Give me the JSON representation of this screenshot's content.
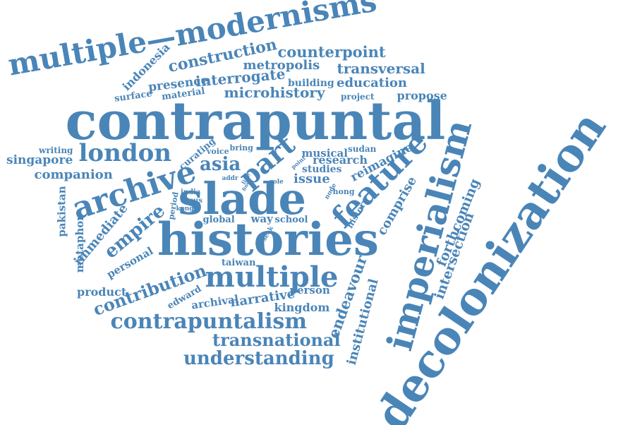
{
  "colors": {
    "text": "#4a85b8",
    "background": "#ffffff"
  },
  "words": {
    "multiple_modernisms": "multiple—modernisms",
    "construction": "construction",
    "indonesia": "indonesia",
    "counterpoint": "counterpoint",
    "metropolis": "metropolis",
    "transversal": "transversal",
    "presence": "presence",
    "interrogate": "interrogate",
    "building": "building",
    "education": "education",
    "surface": "surface",
    "material": "material",
    "microhistory": "microhistory",
    "project": "project",
    "propose": "propose",
    "contrapuntal": "contrapuntal",
    "writing": "writing",
    "singapore": "singapore",
    "london": "london",
    "curating": "curating",
    "voice": "voice",
    "bring": "bring",
    "musical": "musical",
    "sudan": "sudan",
    "research": "research",
    "reimagine": "reimagine",
    "companion": "companion",
    "asia": "asia",
    "part": "part",
    "archive": "archive",
    "addr": "addr",
    "line": "line",
    "fine": "fine",
    "role": "role",
    "point": "point",
    "studies": "studies",
    "issue": "issue",
    "node": "node",
    "hong": "hong",
    "feature": "feature",
    "imperialism": "imperialism",
    "decolonization": "decolonization",
    "pakistan": "pakistan",
    "slade": "slade",
    "india": "india",
    "focus": "focus",
    "kong": "kong",
    "period": "period",
    "empire": "empire",
    "immediate": "immediate",
    "metaphor": "metaphor",
    "global": "global",
    "way": "way",
    "school": "school",
    "seek": "seek",
    "history": "history",
    "comprise": "comprise",
    "forthcoming": "forthcoming",
    "histories": "histories",
    "intersection": "intersection",
    "personal": "personal",
    "taiwan": "taiwan",
    "multiple": "multiple",
    "product": "product",
    "contribution": "contribution",
    "edward": "edward",
    "archival": "archival",
    "narrative": "narrative",
    "person": "person",
    "endeavour": "endeavour",
    "institutional": "institutional",
    "kingdom": "kingdom",
    "contrapuntalism": "contrapuntalism",
    "transnational": "transnational",
    "understanding": "understanding"
  }
}
